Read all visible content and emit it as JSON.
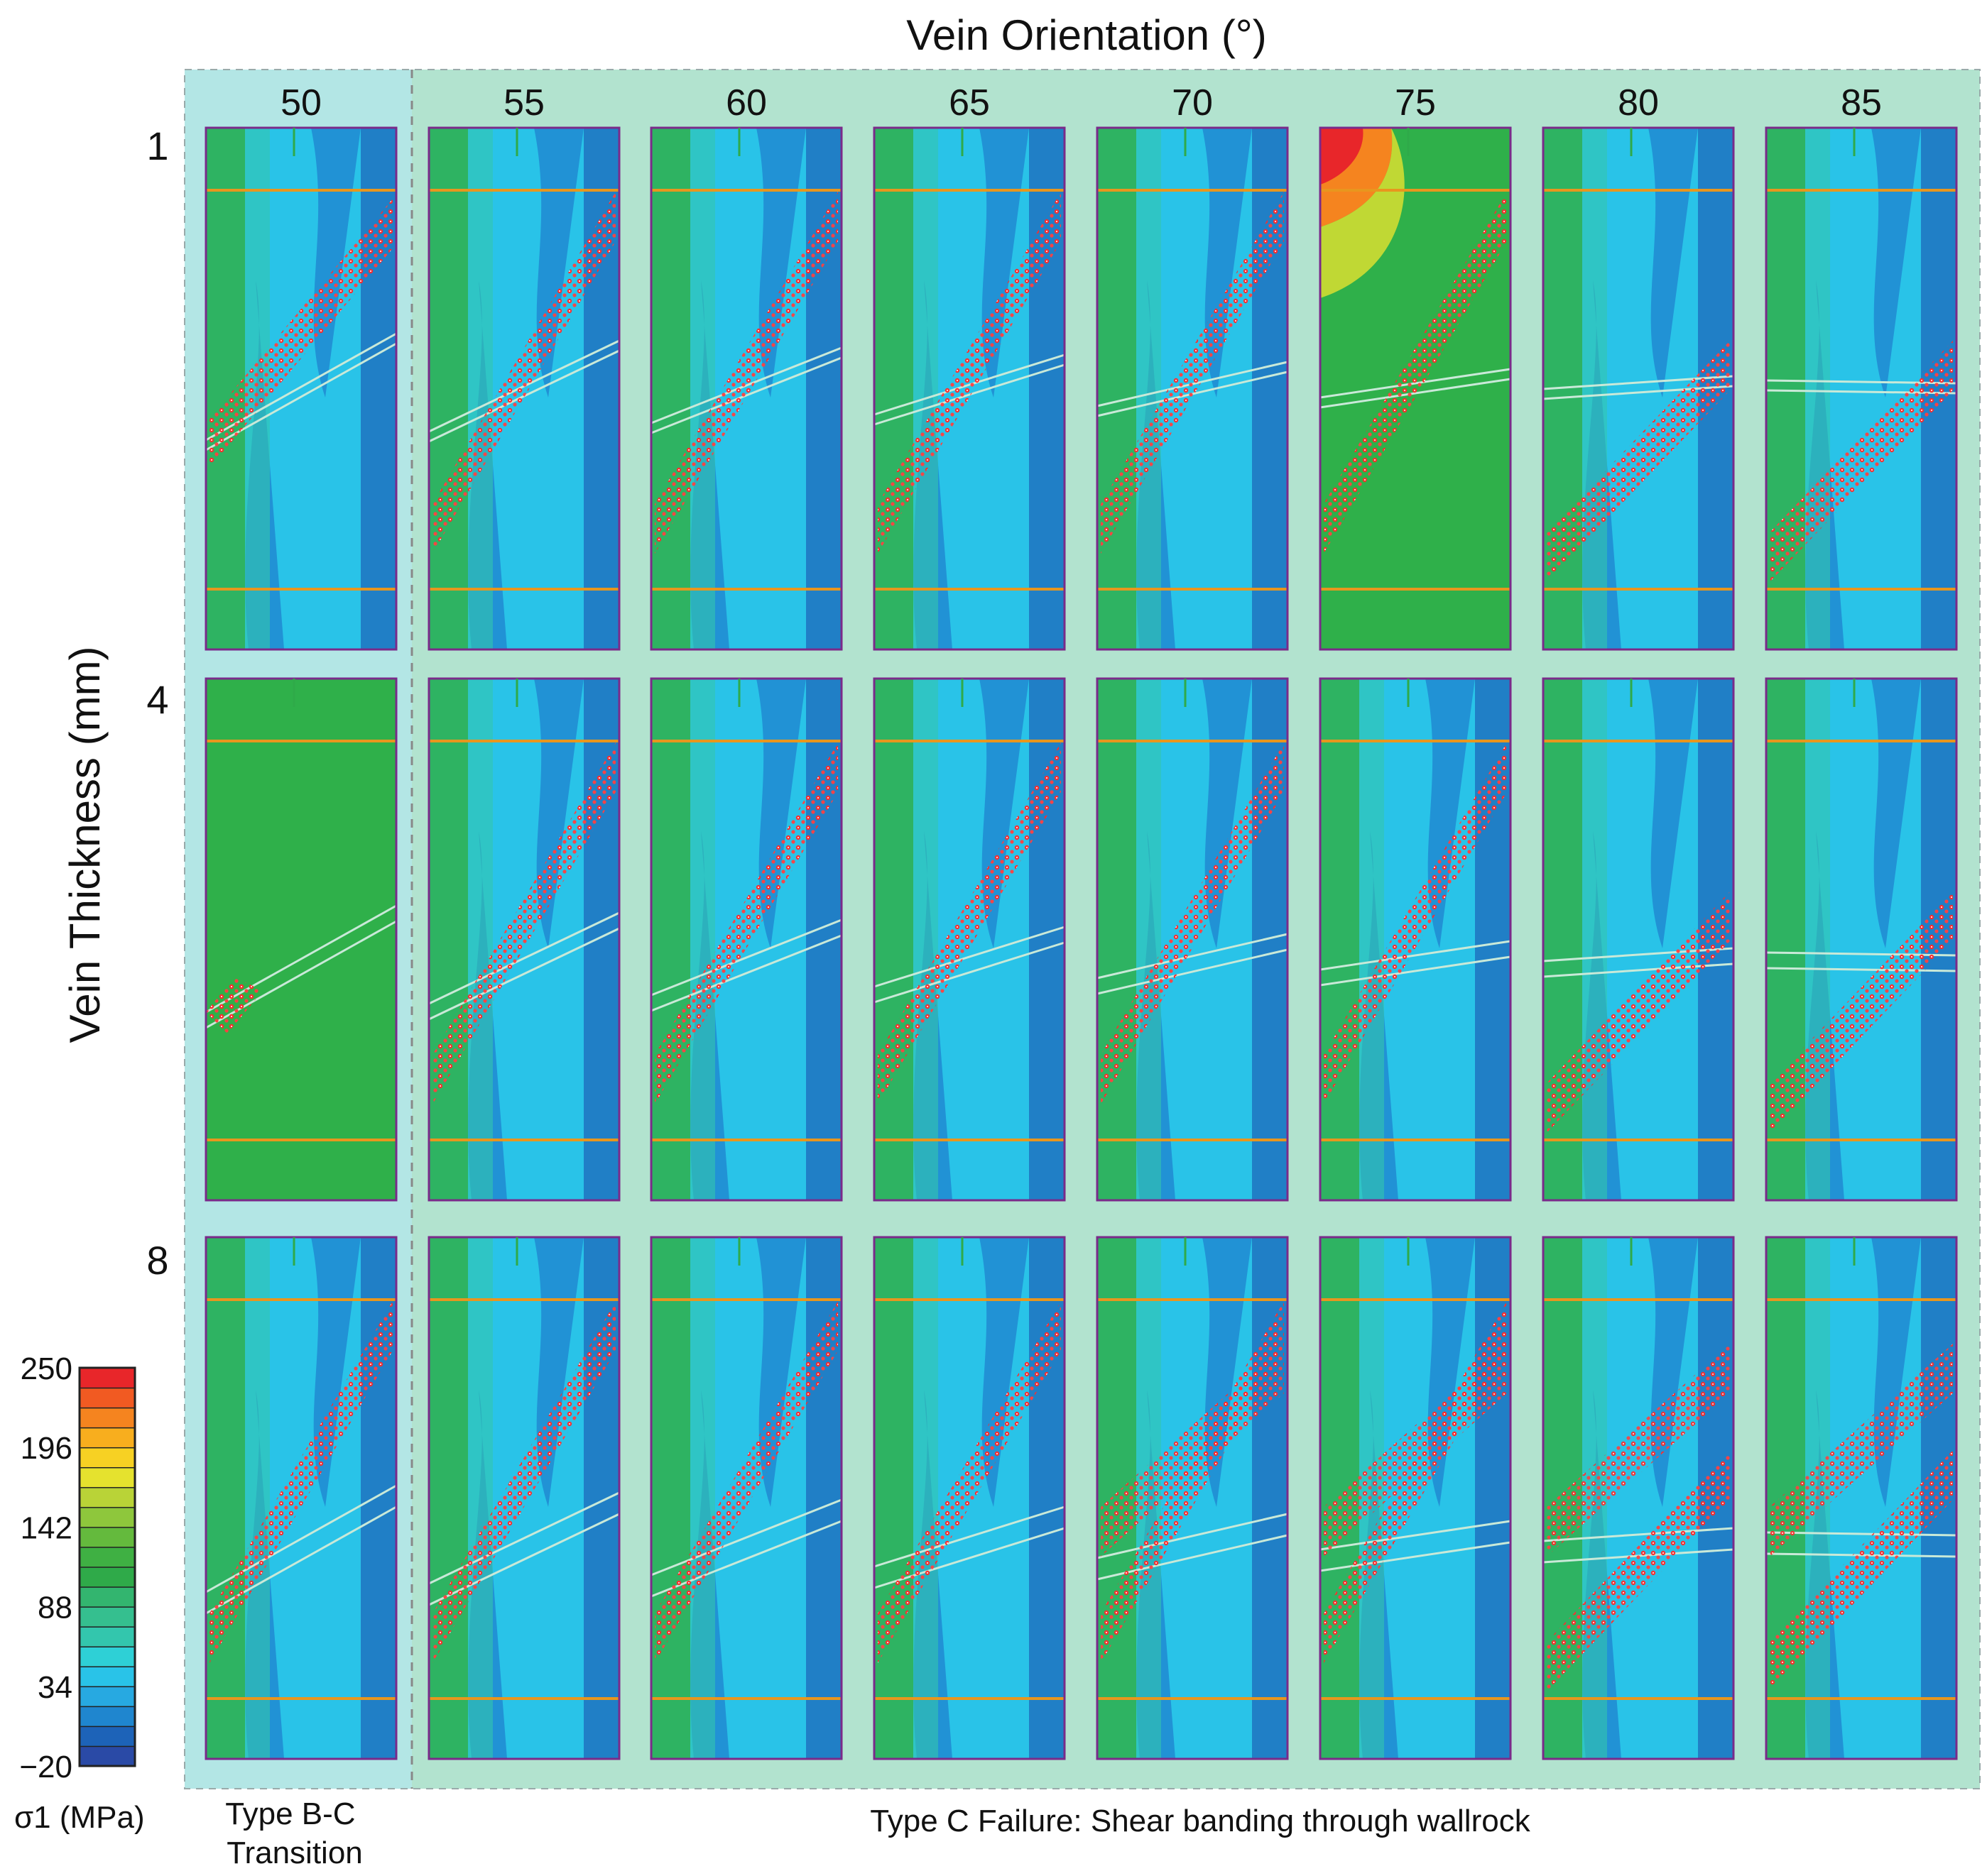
{
  "title": "Vein Orientation (°)",
  "y_axis_title": "Vein Thickness (mm)",
  "orientations": [
    "50",
    "55",
    "60",
    "65",
    "70",
    "75",
    "80",
    "85"
  ],
  "thicknesses": [
    "1",
    "4",
    "8"
  ],
  "colorbar": {
    "title": "σ1 (MPa)",
    "ticks": [
      "250",
      "196",
      "142",
      "88",
      "34",
      "−20"
    ],
    "colors": [
      "#2a4aa6",
      "#1d63b8",
      "#1f86cf",
      "#27a9e1",
      "#29c3e8",
      "#2ed0d6",
      "#33c6ad",
      "#35bf8f",
      "#33b56f",
      "#2faa49",
      "#3fb043",
      "#64ba3d",
      "#8ec73c",
      "#b9d337",
      "#e5e22e",
      "#f7d123",
      "#f8ae1e",
      "#f5841f",
      "#f15a22",
      "#e8262a"
    ]
  },
  "failure_types": {
    "type_bc": "Type B-C\nTransition",
    "type_c": "Type C Failure: Shear banding through wallrock"
  },
  "panels_note": "Grid of 24 stress-contour panels (3 thicknesses × 8 orientations) showing σ1 fields with red failure markers"
}
